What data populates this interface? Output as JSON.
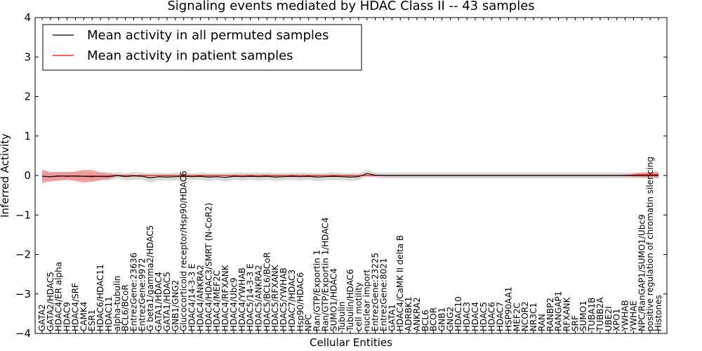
{
  "chart_data": {
    "type": "line",
    "title": "Signaling events mediated by HDAC Class II -- 43 samples",
    "xlabel": "Cellular Entities",
    "ylabel": "Inferred Activity",
    "ylim": [
      -4,
      4
    ],
    "yticks": [
      -4,
      -3,
      -2,
      -1,
      0,
      1,
      2,
      3,
      4
    ],
    "ytick_labels": [
      "−4",
      "−3",
      "−2",
      "−1",
      "0",
      "1",
      "2",
      "3",
      "4"
    ],
    "grid": false,
    "legend_position": "top-left",
    "categories": [
      "GATA2",
      "GATA2/HDAC5",
      "HDAC4/ER alpha",
      "HDAC9",
      "HDAC4/SRF",
      "CAMK4",
      "ESR1",
      "HDAC6/HDAC11",
      "HDAC11",
      "alpha-tubulin",
      "BCL6/BCoR",
      "EntrezGene:23636",
      "EntrezGene:9972",
      "G beta1/gamma2/HDAC5",
      "GATA1/HDAC4",
      "GATA1/HDAC5",
      "GNB1/GNG2",
      "Glucocorticoid receptor/Hsp90/HDAC6",
      "HDAC4/14-3-3 E",
      "HDAC4/ANKRA2",
      "HDAC4/HDAC3/SMRT (N-CoR2)",
      "HDAC4/MEF2C",
      "HDAC4/RFXANK",
      "HDAC4/Ubc9",
      "HDAC4/YWHAB",
      "HDAC5/14-3-3 E",
      "HDAC5/ANKRA2",
      "HDAC5/BCL6/BCoR",
      "HDAC5/RFXANK",
      "HDAC5/YWHAB",
      "HDAC7/HDAC3",
      "Hsp90/HDAC6",
      "NPC",
      "Ran/GTP/Exportin 1",
      "Ran/GTP/Exportin 1/HDAC4",
      "SUMO1/HDAC4",
      "Tubulin",
      "Tubulin/HDAC6",
      "cell motility",
      "nuclear import",
      "EntrezGene:23225",
      "EntrezGene:8021",
      "GATA1",
      "HDAC4/CaMK II delta B",
      "ADRBK1",
      "ANKRA2",
      "BCL6",
      "BCOR",
      "GNB1",
      "GNG2",
      "HDAC10",
      "HDAC3",
      "HDAC4",
      "HDAC5",
      "HDAC6",
      "HDAC7",
      "HSP90AA1",
      "MEF2C",
      "NCOR2",
      "NR3C1",
      "RAN",
      "RANBP2",
      "RANGAP1",
      "RFXANK",
      "SRF",
      "SUMO1",
      "TUBA1B",
      "TUBB2A",
      "UBE2I",
      "XPO1",
      "YWHAB",
      "YWHAE",
      "NPC/RanGAP1/SUMO1/Ubc9",
      "positive regulation of chromatin silencing",
      "Histones"
    ],
    "series": [
      {
        "name": "Mean activity in all permuted samples",
        "color": "#000000",
        "band_color": "#cccccc",
        "values": [
          -0.02,
          -0.03,
          -0.01,
          -0.02,
          -0.01,
          -0.02,
          -0.03,
          -0.02,
          -0.03,
          0.0,
          -0.03,
          -0.01,
          -0.02,
          -0.06,
          -0.03,
          -0.04,
          -0.03,
          -0.02,
          -0.03,
          -0.02,
          -0.04,
          -0.03,
          -0.05,
          -0.02,
          -0.03,
          -0.02,
          -0.03,
          -0.02,
          -0.04,
          -0.03,
          -0.02,
          -0.03,
          -0.02,
          -0.04,
          -0.03,
          -0.02,
          -0.03,
          -0.04,
          -0.03,
          0.05,
          0.01,
          0.0,
          0.0,
          0.0,
          0.0,
          0.0,
          0.0,
          0.0,
          0.0,
          0.0,
          0.0,
          0.0,
          0.0,
          0.0,
          0.0,
          0.0,
          0.0,
          0.0,
          0.0,
          0.0,
          0.0,
          0.0,
          0.0,
          0.0,
          0.0,
          0.0,
          0.0,
          0.0,
          0.0,
          0.0,
          0.0,
          0.0,
          0.0,
          0.0,
          0.0
        ],
        "band_halfwidth": [
          0.1,
          0.09,
          0.1,
          0.09,
          0.1,
          0.11,
          0.1,
          0.09,
          0.1,
          0.08,
          0.09,
          0.1,
          0.09,
          0.12,
          0.1,
          0.09,
          0.1,
          0.09,
          0.08,
          0.09,
          0.1,
          0.09,
          0.11,
          0.09,
          0.1,
          0.09,
          0.1,
          0.09,
          0.1,
          0.09,
          0.09,
          0.1,
          0.09,
          0.1,
          0.09,
          0.1,
          0.09,
          0.1,
          0.09,
          0.08,
          0.07,
          0.07,
          0.07,
          0.07,
          0.07,
          0.07,
          0.07,
          0.07,
          0.07,
          0.07,
          0.07,
          0.07,
          0.07,
          0.07,
          0.07,
          0.07,
          0.07,
          0.07,
          0.07,
          0.07,
          0.07,
          0.07,
          0.07,
          0.07,
          0.07,
          0.07,
          0.07,
          0.07,
          0.07,
          0.07,
          0.07,
          0.07,
          0.07,
          0.07,
          0.07
        ]
      },
      {
        "name": "Mean activity in patient samples",
        "color": "#ff0000",
        "band_color": "#f08080",
        "values": [
          -0.02,
          -0.03,
          -0.02,
          -0.01,
          -0.02,
          -0.02,
          -0.01,
          -0.02,
          -0.01,
          0.0,
          0.0,
          0.0,
          0.0,
          0.0,
          0.0,
          0.0,
          0.0,
          0.0,
          0.0,
          0.0,
          0.0,
          0.0,
          0.0,
          0.0,
          0.0,
          0.0,
          0.0,
          0.0,
          0.0,
          0.0,
          0.0,
          0.0,
          0.0,
          0.0,
          0.0,
          0.0,
          0.0,
          0.0,
          0.0,
          0.0,
          0.0,
          0.0,
          0.0,
          0.0,
          0.0,
          0.0,
          0.0,
          0.0,
          0.0,
          0.0,
          0.0,
          0.0,
          0.0,
          0.0,
          0.0,
          0.0,
          0.0,
          0.0,
          0.0,
          0.0,
          0.0,
          0.0,
          0.0,
          0.0,
          0.0,
          0.0,
          0.0,
          0.0,
          0.0,
          0.0,
          0.0,
          0.01,
          0.02,
          0.02,
          0.02
        ],
        "band_halfwidth": [
          0.17,
          0.12,
          0.11,
          0.1,
          0.12,
          0.16,
          0.15,
          0.1,
          0.07,
          0.02,
          0.0,
          0.0,
          0.0,
          0.0,
          0.0,
          0.0,
          0.0,
          0.0,
          0.0,
          0.0,
          0.0,
          0.0,
          0.0,
          0.0,
          0.0,
          0.0,
          0.0,
          0.0,
          0.0,
          0.0,
          0.0,
          0.0,
          0.0,
          0.0,
          0.0,
          0.0,
          0.0,
          0.0,
          0.0,
          0.0,
          0.0,
          0.0,
          0.0,
          0.0,
          0.0,
          0.0,
          0.0,
          0.0,
          0.0,
          0.0,
          0.0,
          0.0,
          0.0,
          0.0,
          0.0,
          0.0,
          0.0,
          0.0,
          0.0,
          0.0,
          0.0,
          0.0,
          0.0,
          0.0,
          0.0,
          0.0,
          0.0,
          0.0,
          0.0,
          0.0,
          0.02,
          0.04,
          0.06,
          0.07,
          0.08
        ]
      }
    ]
  }
}
